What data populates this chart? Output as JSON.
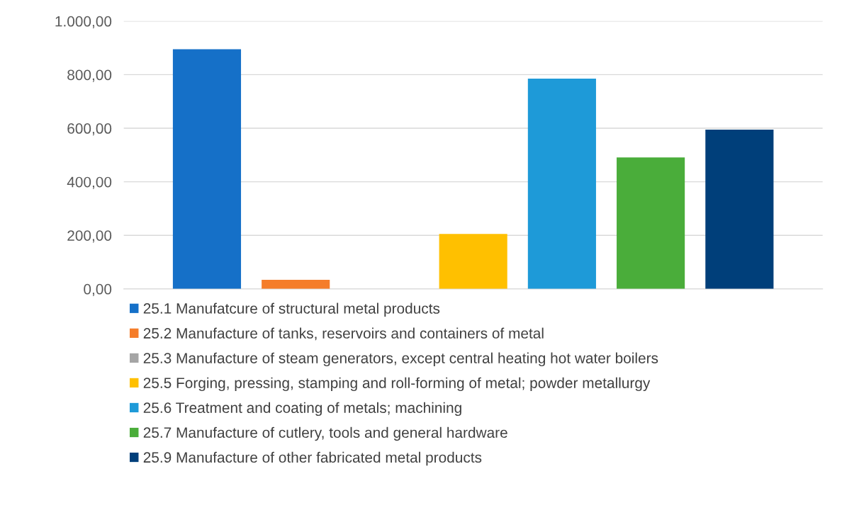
{
  "chart_data": {
    "type": "bar",
    "categories": [
      null
    ],
    "series": [
      {
        "name": "25.1 Manufatcure of structural metal products",
        "color": "#1570c8",
        "values": [
          895
        ]
      },
      {
        "name": "25.2 Manufacture of tanks, reservoirs and containers of metal",
        "color": "#f57d2a",
        "values": [
          34
        ]
      },
      {
        "name": "25.3 Manufacture of steam generators, except central heating hot water boilers",
        "color": "#a5a5a5",
        "values": [
          0
        ]
      },
      {
        "name": "25.5 Forging, pressing, stamping and roll-forming of metal; powder metallurgy",
        "color": "#ffc000",
        "values": [
          205
        ]
      },
      {
        "name": "25.6 Treatment and coating of metals; machining",
        "color": "#1e9ad8",
        "values": [
          785
        ]
      },
      {
        "name": "25.7 Manufacture of cutlery, tools and general hardware",
        "color": "#4aad3a",
        "values": [
          491
        ]
      },
      {
        "name": "25.9 Manufacture of other fabricated metal products",
        "color": "#003f7a",
        "values": [
          595
        ]
      }
    ],
    "ylim": [
      0,
      1000
    ],
    "yticks": [
      {
        "value": 0,
        "label": "0,00"
      },
      {
        "value": 200,
        "label": "200,00"
      },
      {
        "value": 400,
        "label": "400,00"
      },
      {
        "value": 600,
        "label": "600,00"
      },
      {
        "value": 800,
        "label": "800,00"
      },
      {
        "value": 1000,
        "label": "1.000,00"
      }
    ],
    "grid": "y",
    "legend": "bottom"
  }
}
